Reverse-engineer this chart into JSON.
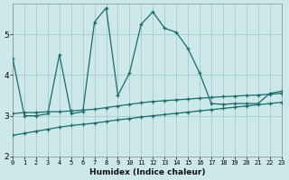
{
  "xlabel": "Humidex (Indice chaleur)",
  "bg_color": "#cce8e8",
  "grid_color": "#aacfcf",
  "line_color": "#1a6b6b",
  "x_ticks": [
    0,
    1,
    2,
    3,
    4,
    5,
    6,
    7,
    8,
    9,
    10,
    11,
    12,
    13,
    14,
    15,
    16,
    17,
    18,
    19,
    20,
    21,
    22,
    23
  ],
  "y_ticks": [
    2,
    3,
    4,
    5
  ],
  "xlim": [
    0,
    23
  ],
  "ylim": [
    2.0,
    5.75
  ],
  "line1_x": [
    0,
    1,
    2,
    3,
    4,
    5,
    6,
    7,
    8,
    9,
    10,
    11,
    12,
    13,
    14,
    15,
    16,
    17,
    18,
    19,
    20,
    21,
    22,
    23
  ],
  "line1_y": [
    4.4,
    3.0,
    3.0,
    3.05,
    4.5,
    3.05,
    3.1,
    5.3,
    5.65,
    3.5,
    4.05,
    5.25,
    5.55,
    5.15,
    5.05,
    4.65,
    4.05,
    3.3,
    3.28,
    3.3,
    3.3,
    3.3,
    3.55,
    3.6
  ],
  "line2_x": [
    0,
    1,
    2,
    3,
    4,
    5,
    6,
    7,
    8,
    9,
    10,
    11,
    12,
    13,
    14,
    15,
    16,
    17,
    18,
    19,
    20,
    21,
    22,
    23
  ],
  "line2_y": [
    3.05,
    3.08,
    3.08,
    3.1,
    3.1,
    3.12,
    3.14,
    3.16,
    3.2,
    3.24,
    3.28,
    3.32,
    3.35,
    3.37,
    3.39,
    3.41,
    3.43,
    3.45,
    3.47,
    3.48,
    3.5,
    3.51,
    3.53,
    3.55
  ],
  "line3_x": [
    0,
    1,
    2,
    3,
    4,
    5,
    6,
    7,
    8,
    9,
    10,
    11,
    12,
    13,
    14,
    15,
    16,
    17,
    18,
    19,
    20,
    21,
    22,
    23
  ],
  "line3_y": [
    2.52,
    2.57,
    2.62,
    2.67,
    2.72,
    2.76,
    2.79,
    2.82,
    2.86,
    2.9,
    2.93,
    2.97,
    3.0,
    3.03,
    3.06,
    3.09,
    3.12,
    3.15,
    3.18,
    3.21,
    3.24,
    3.27,
    3.3,
    3.33
  ]
}
